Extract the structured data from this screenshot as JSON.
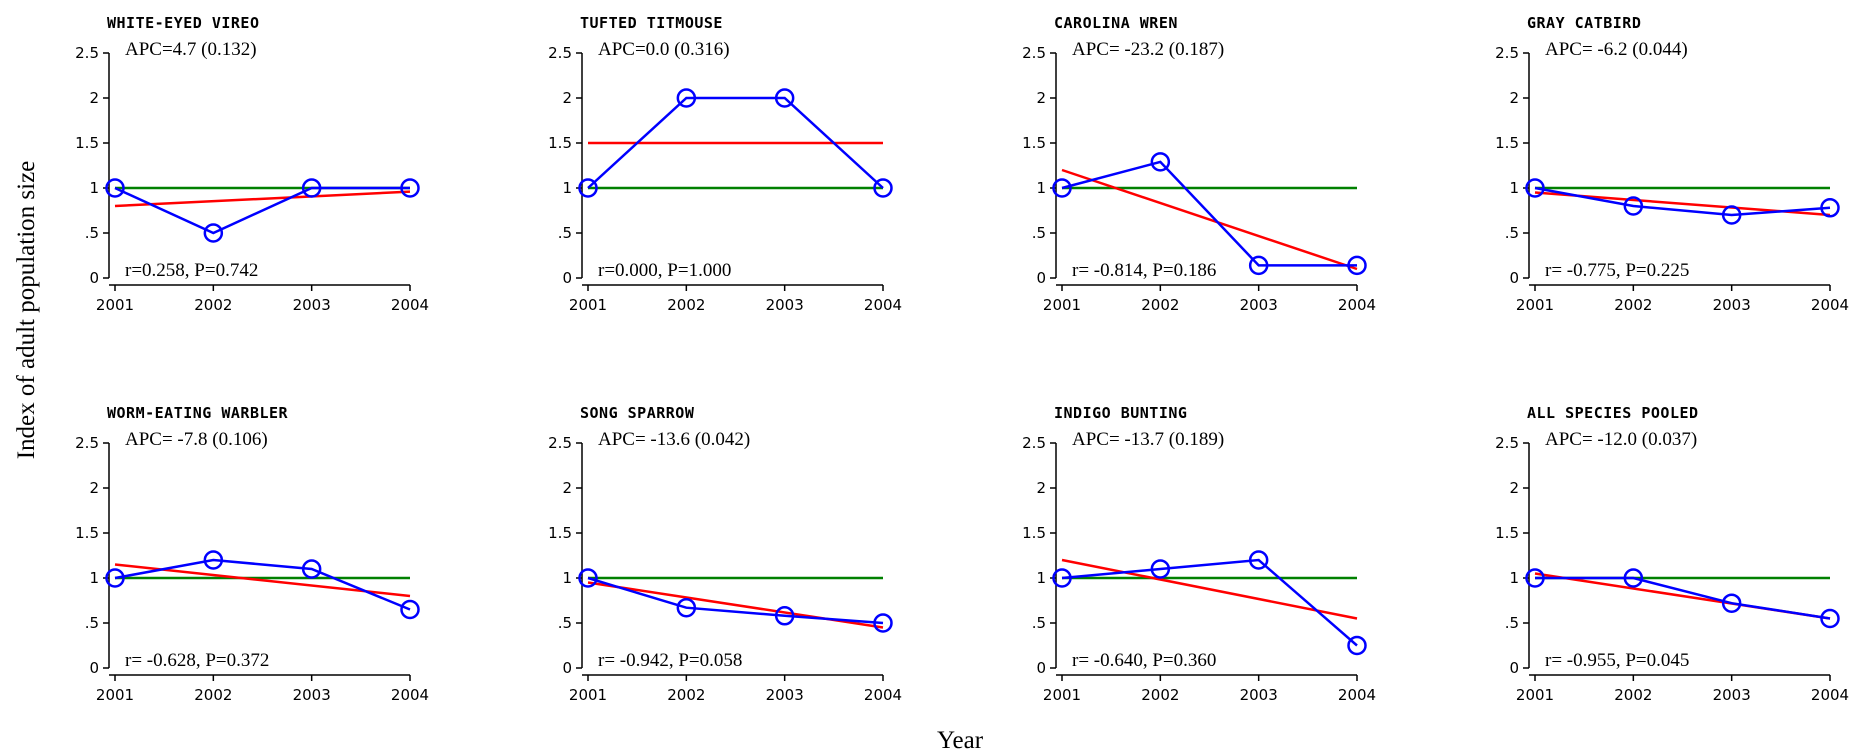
{
  "figure": {
    "ylabel": "Index of adult population size",
    "xlabel": "Year"
  },
  "chart_data": [
    {
      "type": "line",
      "title": "WHITE-EYED VIREO",
      "categories": [
        "2001",
        "2002",
        "2003",
        "2004"
      ],
      "observed": [
        1.0,
        0.5,
        1.0,
        1.0
      ],
      "trend": [
        0.8,
        0.96
      ],
      "baseline": 1.0,
      "apc_text": "APC=4.7 (0.132)",
      "stat_text": "r=0.258, P=0.742",
      "yticks": [
        "0",
        ".5",
        "1",
        "1.5",
        "2",
        "2.5"
      ],
      "ylim": [
        0,
        2.5
      ],
      "colors": {
        "observed": "#0000ff",
        "trend": "#ff0000",
        "baseline": "#008000"
      }
    },
    {
      "type": "line",
      "title": "TUFTED TITMOUSE",
      "categories": [
        "2001",
        "2002",
        "2003",
        "2004"
      ],
      "observed": [
        1.0,
        2.0,
        2.0,
        1.0
      ],
      "trend": [
        1.5,
        1.5
      ],
      "baseline": 1.0,
      "apc_text": "APC=0.0 (0.316)",
      "stat_text": "r=0.000, P=1.000",
      "yticks": [
        "0",
        ".5",
        "1",
        "1.5",
        "2",
        "2.5"
      ],
      "ylim": [
        0,
        2.5
      ],
      "colors": {
        "observed": "#0000ff",
        "trend": "#ff0000",
        "baseline": "#008000"
      }
    },
    {
      "type": "line",
      "title": "CAROLINA WREN",
      "categories": [
        "2001",
        "2002",
        "2003",
        "2004"
      ],
      "observed": [
        1.0,
        1.29,
        0.14,
        0.14
      ],
      "trend": [
        1.2,
        0.1
      ],
      "baseline": 1.0,
      "apc_text": "APC= -23.2 (0.187)",
      "stat_text": "r= -0.814, P=0.186",
      "yticks": [
        "0",
        ".5",
        "1",
        "1.5",
        "2",
        "2.5"
      ],
      "ylim": [
        0,
        2.5
      ],
      "colors": {
        "observed": "#0000ff",
        "trend": "#ff0000",
        "baseline": "#008000"
      }
    },
    {
      "type": "line",
      "title": "GRAY CATBIRD",
      "categories": [
        "2001",
        "2002",
        "2003",
        "2004"
      ],
      "observed": [
        1.0,
        0.8,
        0.7,
        0.78
      ],
      "trend": [
        0.95,
        0.7
      ],
      "baseline": 1.0,
      "apc_text": "APC= -6.2 (0.044)",
      "stat_text": "r= -0.775, P=0.225",
      "yticks": [
        "0",
        ".5",
        "1",
        "1.5",
        "2",
        "2.5"
      ],
      "ylim": [
        0,
        2.5
      ],
      "colors": {
        "observed": "#0000ff",
        "trend": "#ff0000",
        "baseline": "#008000"
      }
    },
    {
      "type": "line",
      "title": "WORM-EATING WARBLER",
      "categories": [
        "2001",
        "2002",
        "2003",
        "2004"
      ],
      "observed": [
        1.0,
        1.2,
        1.1,
        0.65
      ],
      "trend": [
        1.15,
        0.8
      ],
      "baseline": 1.0,
      "apc_text": "APC= -7.8 (0.106)",
      "stat_text": "r= -0.628, P=0.372",
      "yticks": [
        "0",
        ".5",
        "1",
        "1.5",
        "2",
        "2.5"
      ],
      "ylim": [
        0,
        2.5
      ],
      "colors": {
        "observed": "#0000ff",
        "trend": "#ff0000",
        "baseline": "#008000"
      }
    },
    {
      "type": "line",
      "title": "SONG SPARROW",
      "categories": [
        "2001",
        "2002",
        "2003",
        "2004"
      ],
      "observed": [
        1.0,
        0.67,
        0.58,
        0.5
      ],
      "trend": [
        0.95,
        0.45
      ],
      "baseline": 1.0,
      "apc_text": "APC= -13.6 (0.042)",
      "stat_text": "r= -0.942, P=0.058",
      "yticks": [
        "0",
        ".5",
        "1",
        "1.5",
        "2",
        "2.5"
      ],
      "ylim": [
        0,
        2.5
      ],
      "colors": {
        "observed": "#0000ff",
        "trend": "#ff0000",
        "baseline": "#008000"
      }
    },
    {
      "type": "line",
      "title": "INDIGO BUNTING",
      "categories": [
        "2001",
        "2002",
        "2003",
        "2004"
      ],
      "observed": [
        1.0,
        1.1,
        1.2,
        0.25
      ],
      "trend": [
        1.2,
        0.55
      ],
      "baseline": 1.0,
      "apc_text": "APC= -13.7 (0.189)",
      "stat_text": "r= -0.640, P=0.360",
      "yticks": [
        "0",
        ".5",
        "1",
        "1.5",
        "2",
        "2.5"
      ],
      "ylim": [
        0,
        2.5
      ],
      "colors": {
        "observed": "#0000ff",
        "trend": "#ff0000",
        "baseline": "#008000"
      }
    },
    {
      "type": "line",
      "title": "ALL SPECIES POOLED",
      "categories": [
        "2001",
        "2002",
        "2003",
        "2004"
      ],
      "observed": [
        1.0,
        1.0,
        0.72,
        0.55
      ],
      "trend": [
        1.05,
        0.55
      ],
      "baseline": 1.0,
      "apc_text": "APC= -12.0 (0.037)",
      "stat_text": "r= -0.955, P=0.045",
      "yticks": [
        "0",
        ".5",
        "1",
        "1.5",
        "2",
        "2.5"
      ],
      "ylim": [
        0,
        2.5
      ],
      "colors": {
        "observed": "#0000ff",
        "trend": "#ff0000",
        "baseline": "#008000"
      }
    }
  ]
}
